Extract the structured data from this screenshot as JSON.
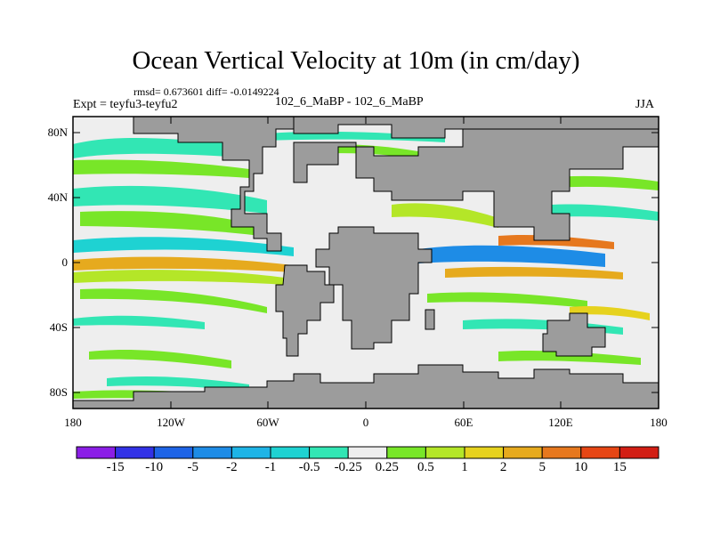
{
  "title": "Ocean Vertical Velocity at 10m (in cm/day)",
  "stats": "rmsd= 0.673601 diff= -0.0149224",
  "expt_label": "Expt = teyfu3-teyfu2",
  "case_label": "102_6_MaBP - 102_6_MaBP",
  "season": "JJA",
  "y_axis": {
    "ticks": [
      "80N",
      "40N",
      "0",
      "40S",
      "80S"
    ]
  },
  "x_axis": {
    "ticks": [
      "180",
      "120W",
      "60W",
      "0",
      "60E",
      "120E",
      "180"
    ]
  },
  "colorbar": {
    "labels": [
      "-15",
      "-10",
      "-5",
      "-2",
      "-1",
      "-0.5",
      "-0.25",
      "0.25",
      "0.5",
      "1",
      "2",
      "5",
      "10",
      "15"
    ],
    "colors": [
      "#8b1ee6",
      "#3232e6",
      "#1e64e6",
      "#1e8ce6",
      "#1eb4e6",
      "#1ed2d2",
      "#32e6b4",
      "#eeeeee",
      "#78e628",
      "#b4e628",
      "#e6d21e",
      "#e6aa1e",
      "#e6781e",
      "#e64614",
      "#d21e14"
    ]
  },
  "colors": {
    "land": "#9c9c9c",
    "ocean_neutral": "#eeeeee",
    "frame": "#000000"
  }
}
